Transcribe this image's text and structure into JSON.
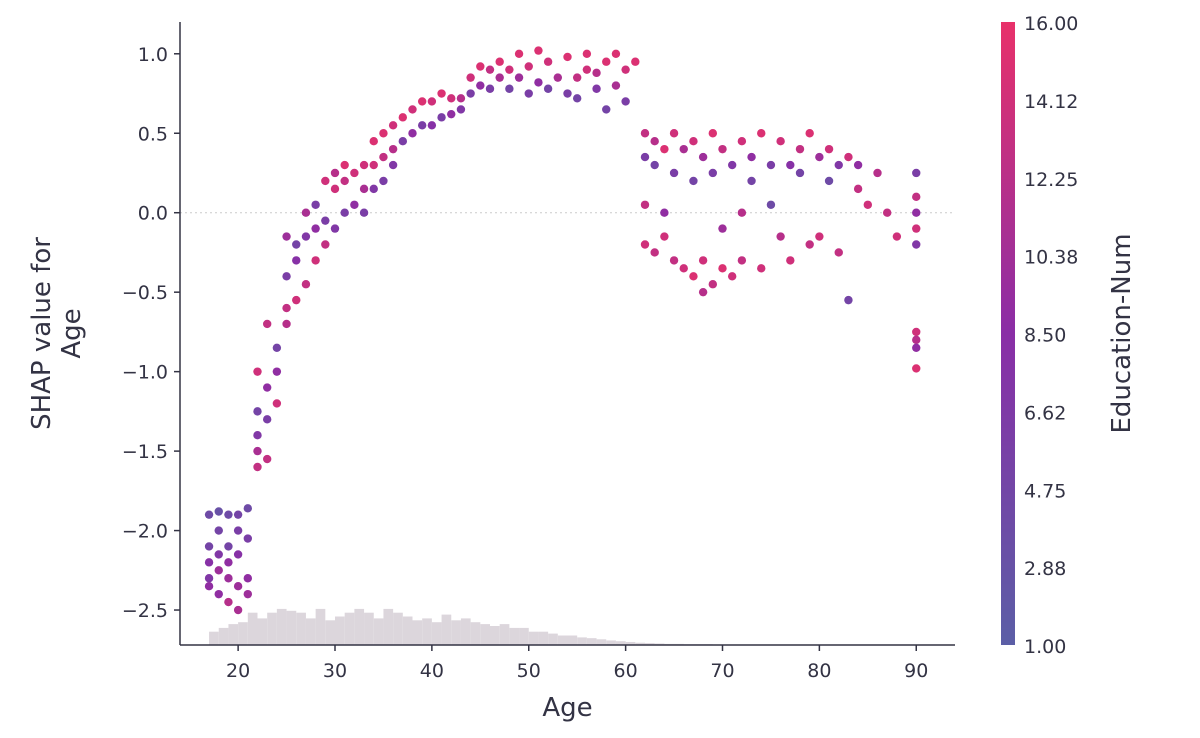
{
  "chart_data": {
    "type": "scatter",
    "title": "",
    "xlabel": "Age",
    "ylabel": "SHAP value for\nAge",
    "xlim": [
      14,
      94
    ],
    "ylim": [
      -2.72,
      1.2
    ],
    "x_ticks": [
      20,
      30,
      40,
      50,
      60,
      70,
      80,
      90
    ],
    "x_tick_labels": [
      "20",
      "30",
      "40",
      "50",
      "60",
      "70",
      "80",
      "90"
    ],
    "y_ticks": [
      -2.5,
      -2.0,
      -1.5,
      -1.0,
      -0.5,
      0.0,
      0.5,
      1.0
    ],
    "y_tick_labels": [
      "−2.5",
      "−2.0",
      "−1.5",
      "−1.0",
      "−0.5",
      "0.0",
      "0.5",
      "1.0"
    ],
    "zero_line": true,
    "grid": false,
    "colorbar": {
      "label": "Education-Num",
      "min": 1.0,
      "max": 16.0,
      "ticks": [
        16.0,
        14.12,
        12.25,
        10.38,
        8.5,
        6.62,
        4.75,
        2.88,
        1.0
      ],
      "tick_labels": [
        "16.00",
        "14.12",
        "12.25",
        "10.38",
        "8.50",
        "6.62",
        "4.75",
        "2.88",
        "1.00"
      ],
      "colors": [
        "#5b5ea6",
        "#8a2ea6",
        "#e8316a"
      ]
    },
    "points": [
      {
        "x": 17,
        "y": -2.3,
        "c": 7
      },
      {
        "x": 17,
        "y": -2.1,
        "c": 5
      },
      {
        "x": 17,
        "y": -1.9,
        "c": 4
      },
      {
        "x": 17,
        "y": -2.2,
        "c": 8
      },
      {
        "x": 17,
        "y": -2.35,
        "c": 9
      },
      {
        "x": 18,
        "y": -2.25,
        "c": 10
      },
      {
        "x": 18,
        "y": -2.0,
        "c": 5
      },
      {
        "x": 18,
        "y": -2.15,
        "c": 7
      },
      {
        "x": 18,
        "y": -1.88,
        "c": 3
      },
      {
        "x": 18,
        "y": -2.4,
        "c": 9
      },
      {
        "x": 19,
        "y": -2.3,
        "c": 10
      },
      {
        "x": 19,
        "y": -2.1,
        "c": 5
      },
      {
        "x": 19,
        "y": -2.45,
        "c": 12
      },
      {
        "x": 19,
        "y": -1.9,
        "c": 4
      },
      {
        "x": 19,
        "y": -2.2,
        "c": 9
      },
      {
        "x": 20,
        "y": -2.35,
        "c": 10
      },
      {
        "x": 20,
        "y": -2.0,
        "c": 6
      },
      {
        "x": 20,
        "y": -2.5,
        "c": 11
      },
      {
        "x": 20,
        "y": -2.15,
        "c": 8
      },
      {
        "x": 20,
        "y": -1.9,
        "c": 5
      },
      {
        "x": 21,
        "y": -2.3,
        "c": 9
      },
      {
        "x": 21,
        "y": -2.05,
        "c": 6
      },
      {
        "x": 21,
        "y": -1.86,
        "c": 4
      },
      {
        "x": 21,
        "y": -2.4,
        "c": 10
      },
      {
        "x": 22,
        "y": -1.6,
        "c": 13
      },
      {
        "x": 22,
        "y": -1.4,
        "c": 7
      },
      {
        "x": 22,
        "y": -1.25,
        "c": 5
      },
      {
        "x": 22,
        "y": -1.5,
        "c": 11
      },
      {
        "x": 22,
        "y": -1.0,
        "c": 14
      },
      {
        "x": 23,
        "y": -1.55,
        "c": 13
      },
      {
        "x": 23,
        "y": -1.3,
        "c": 6
      },
      {
        "x": 23,
        "y": -1.1,
        "c": 9
      },
      {
        "x": 23,
        "y": -0.7,
        "c": 13
      },
      {
        "x": 24,
        "y": -1.2,
        "c": 14
      },
      {
        "x": 24,
        "y": -1.0,
        "c": 9
      },
      {
        "x": 24,
        "y": -0.85,
        "c": 5
      },
      {
        "x": 25,
        "y": -0.6,
        "c": 13
      },
      {
        "x": 25,
        "y": -0.4,
        "c": 6
      },
      {
        "x": 25,
        "y": -0.15,
        "c": 10
      },
      {
        "x": 25,
        "y": -0.7,
        "c": 12
      },
      {
        "x": 26,
        "y": -0.55,
        "c": 14
      },
      {
        "x": 26,
        "y": -0.3,
        "c": 8
      },
      {
        "x": 26,
        "y": -0.2,
        "c": 5
      },
      {
        "x": 27,
        "y": -0.45,
        "c": 13
      },
      {
        "x": 27,
        "y": -0.15,
        "c": 7
      },
      {
        "x": 27,
        "y": 0.0,
        "c": 11
      },
      {
        "x": 28,
        "y": -0.3,
        "c": 14
      },
      {
        "x": 28,
        "y": -0.1,
        "c": 9
      },
      {
        "x": 28,
        "y": 0.05,
        "c": 6
      },
      {
        "x": 29,
        "y": -0.2,
        "c": 13
      },
      {
        "x": 29,
        "y": -0.05,
        "c": 6
      },
      {
        "x": 29,
        "y": 0.2,
        "c": 14
      },
      {
        "x": 30,
        "y": -0.1,
        "c": 7
      },
      {
        "x": 30,
        "y": 0.15,
        "c": 14
      },
      {
        "x": 30,
        "y": 0.25,
        "c": 12
      },
      {
        "x": 31,
        "y": 0.0,
        "c": 6
      },
      {
        "x": 31,
        "y": 0.2,
        "c": 13
      },
      {
        "x": 31,
        "y": 0.3,
        "c": 15
      },
      {
        "x": 32,
        "y": 0.05,
        "c": 9
      },
      {
        "x": 32,
        "y": 0.25,
        "c": 14
      },
      {
        "x": 33,
        "y": 0.0,
        "c": 6
      },
      {
        "x": 33,
        "y": 0.15,
        "c": 11
      },
      {
        "x": 33,
        "y": 0.3,
        "c": 14
      },
      {
        "x": 34,
        "y": 0.3,
        "c": 14
      },
      {
        "x": 34,
        "y": 0.45,
        "c": 15
      },
      {
        "x": 34,
        "y": 0.15,
        "c": 7
      },
      {
        "x": 35,
        "y": 0.35,
        "c": 13
      },
      {
        "x": 35,
        "y": 0.2,
        "c": 6
      },
      {
        "x": 35,
        "y": 0.5,
        "c": 15
      },
      {
        "x": 36,
        "y": 0.4,
        "c": 12
      },
      {
        "x": 36,
        "y": 0.3,
        "c": 7
      },
      {
        "x": 36,
        "y": 0.55,
        "c": 14
      },
      {
        "x": 37,
        "y": 0.6,
        "c": 15
      },
      {
        "x": 37,
        "y": 0.45,
        "c": 6
      },
      {
        "x": 38,
        "y": 0.5,
        "c": 9
      },
      {
        "x": 38,
        "y": 0.65,
        "c": 14
      },
      {
        "x": 39,
        "y": 0.55,
        "c": 6
      },
      {
        "x": 39,
        "y": 0.7,
        "c": 15
      },
      {
        "x": 40,
        "y": 0.55,
        "c": 8
      },
      {
        "x": 40,
        "y": 0.7,
        "c": 14
      },
      {
        "x": 41,
        "y": 0.6,
        "c": 6
      },
      {
        "x": 41,
        "y": 0.75,
        "c": 15
      },
      {
        "x": 42,
        "y": 0.62,
        "c": 9
      },
      {
        "x": 42,
        "y": 0.72,
        "c": 14
      },
      {
        "x": 43,
        "y": 0.65,
        "c": 7
      },
      {
        "x": 43,
        "y": 0.72,
        "c": 12
      },
      {
        "x": 44,
        "y": 0.75,
        "c": 6
      },
      {
        "x": 44,
        "y": 0.85,
        "c": 14
      },
      {
        "x": 45,
        "y": 0.8,
        "c": 9
      },
      {
        "x": 45,
        "y": 0.92,
        "c": 15
      },
      {
        "x": 46,
        "y": 0.78,
        "c": 6
      },
      {
        "x": 46,
        "y": 0.9,
        "c": 13
      },
      {
        "x": 47,
        "y": 0.85,
        "c": 11
      },
      {
        "x": 47,
        "y": 0.95,
        "c": 15
      },
      {
        "x": 48,
        "y": 0.78,
        "c": 5
      },
      {
        "x": 48,
        "y": 0.9,
        "c": 14
      },
      {
        "x": 49,
        "y": 0.85,
        "c": 10
      },
      {
        "x": 49,
        "y": 1.0,
        "c": 15
      },
      {
        "x": 50,
        "y": 0.75,
        "c": 6
      },
      {
        "x": 50,
        "y": 0.92,
        "c": 14
      },
      {
        "x": 51,
        "y": 0.82,
        "c": 9
      },
      {
        "x": 51,
        "y": 1.02,
        "c": 15
      },
      {
        "x": 52,
        "y": 0.78,
        "c": 5
      },
      {
        "x": 52,
        "y": 0.95,
        "c": 14
      },
      {
        "x": 53,
        "y": 0.85,
        "c": 11
      },
      {
        "x": 54,
        "y": 0.75,
        "c": 6
      },
      {
        "x": 54,
        "y": 0.98,
        "c": 15
      },
      {
        "x": 55,
        "y": 0.85,
        "c": 13
      },
      {
        "x": 55,
        "y": 0.72,
        "c": 5
      },
      {
        "x": 56,
        "y": 0.9,
        "c": 14
      },
      {
        "x": 56,
        "y": 1.0,
        "c": 15
      },
      {
        "x": 57,
        "y": 0.78,
        "c": 7
      },
      {
        "x": 57,
        "y": 0.88,
        "c": 12
      },
      {
        "x": 58,
        "y": 0.65,
        "c": 5
      },
      {
        "x": 58,
        "y": 0.95,
        "c": 15
      },
      {
        "x": 59,
        "y": 0.8,
        "c": 11
      },
      {
        "x": 59,
        "y": 1.0,
        "c": 15
      },
      {
        "x": 60,
        "y": 0.7,
        "c": 6
      },
      {
        "x": 60,
        "y": 0.9,
        "c": 14
      },
      {
        "x": 61,
        "y": 0.95,
        "c": 15
      },
      {
        "x": 62,
        "y": 0.5,
        "c": 13
      },
      {
        "x": 62,
        "y": 0.35,
        "c": 6
      },
      {
        "x": 62,
        "y": 0.05,
        "c": 13
      },
      {
        "x": 62,
        "y": -0.2,
        "c": 14
      },
      {
        "x": 63,
        "y": 0.45,
        "c": 12
      },
      {
        "x": 63,
        "y": 0.3,
        "c": 5
      },
      {
        "x": 63,
        "y": -0.25,
        "c": 13
      },
      {
        "x": 64,
        "y": 0.4,
        "c": 15
      },
      {
        "x": 64,
        "y": -0.15,
        "c": 14
      },
      {
        "x": 64,
        "y": 0.0,
        "c": 9
      },
      {
        "x": 65,
        "y": 0.5,
        "c": 14
      },
      {
        "x": 65,
        "y": 0.25,
        "c": 6
      },
      {
        "x": 65,
        "y": -0.3,
        "c": 13
      },
      {
        "x": 66,
        "y": 0.4,
        "c": 11
      },
      {
        "x": 66,
        "y": -0.35,
        "c": 14
      },
      {
        "x": 67,
        "y": 0.45,
        "c": 14
      },
      {
        "x": 67,
        "y": 0.2,
        "c": 5
      },
      {
        "x": 67,
        "y": -0.4,
        "c": 15
      },
      {
        "x": 68,
        "y": 0.35,
        "c": 10
      },
      {
        "x": 68,
        "y": -0.3,
        "c": 14
      },
      {
        "x": 68,
        "y": -0.5,
        "c": 12
      },
      {
        "x": 69,
        "y": 0.5,
        "c": 15
      },
      {
        "x": 69,
        "y": 0.25,
        "c": 6
      },
      {
        "x": 69,
        "y": -0.45,
        "c": 13
      },
      {
        "x": 70,
        "y": 0.4,
        "c": 13
      },
      {
        "x": 70,
        "y": -0.1,
        "c": 10
      },
      {
        "x": 70,
        "y": -0.35,
        "c": 15
      },
      {
        "x": 71,
        "y": 0.3,
        "c": 7
      },
      {
        "x": 71,
        "y": -0.4,
        "c": 14
      },
      {
        "x": 72,
        "y": 0.45,
        "c": 14
      },
      {
        "x": 72,
        "y": 0.0,
        "c": 12
      },
      {
        "x": 72,
        "y": -0.3,
        "c": 13
      },
      {
        "x": 73,
        "y": 0.35,
        "c": 9
      },
      {
        "x": 73,
        "y": 0.2,
        "c": 5
      },
      {
        "x": 74,
        "y": 0.5,
        "c": 15
      },
      {
        "x": 74,
        "y": -0.35,
        "c": 14
      },
      {
        "x": 75,
        "y": 0.3,
        "c": 6
      },
      {
        "x": 75,
        "y": 0.05,
        "c": 4
      },
      {
        "x": 76,
        "y": 0.45,
        "c": 14
      },
      {
        "x": 76,
        "y": -0.15,
        "c": 12
      },
      {
        "x": 77,
        "y": 0.3,
        "c": 8
      },
      {
        "x": 77,
        "y": -0.3,
        "c": 14
      },
      {
        "x": 78,
        "y": 0.4,
        "c": 13
      },
      {
        "x": 78,
        "y": 0.25,
        "c": 5
      },
      {
        "x": 79,
        "y": 0.5,
        "c": 15
      },
      {
        "x": 79,
        "y": -0.2,
        "c": 13
      },
      {
        "x": 80,
        "y": 0.35,
        "c": 10
      },
      {
        "x": 80,
        "y": -0.15,
        "c": 14
      },
      {
        "x": 81,
        "y": 0.4,
        "c": 14
      },
      {
        "x": 81,
        "y": 0.2,
        "c": 4
      },
      {
        "x": 82,
        "y": 0.3,
        "c": 7
      },
      {
        "x": 82,
        "y": -0.25,
        "c": 13
      },
      {
        "x": 83,
        "y": 0.35,
        "c": 14
      },
      {
        "x": 83,
        "y": -0.55,
        "c": 5
      },
      {
        "x": 84,
        "y": 0.15,
        "c": 13
      },
      {
        "x": 84,
        "y": 0.3,
        "c": 9
      },
      {
        "x": 85,
        "y": 0.05,
        "c": 14
      },
      {
        "x": 86,
        "y": 0.25,
        "c": 12
      },
      {
        "x": 87,
        "y": 0.0,
        "c": 13
      },
      {
        "x": 88,
        "y": -0.15,
        "c": 14
      },
      {
        "x": 90,
        "y": 0.25,
        "c": 6
      },
      {
        "x": 90,
        "y": 0.1,
        "c": 13
      },
      {
        "x": 90,
        "y": 0.0,
        "c": 9
      },
      {
        "x": 90,
        "y": -0.1,
        "c": 14
      },
      {
        "x": 90,
        "y": -0.2,
        "c": 7
      },
      {
        "x": 90,
        "y": -0.75,
        "c": 14
      },
      {
        "x": 90,
        "y": -0.8,
        "c": 12
      },
      {
        "x": 90,
        "y": -0.85,
        "c": 9
      },
      {
        "x": 90,
        "y": -0.98,
        "c": 15
      }
    ],
    "histogram": {
      "bins_start": 17,
      "bin_width": 1,
      "relative_heights": [
        0.35,
        0.45,
        0.55,
        0.6,
        0.85,
        0.7,
        0.85,
        0.95,
        0.9,
        0.85,
        0.7,
        0.95,
        0.65,
        0.75,
        0.85,
        0.95,
        0.85,
        0.7,
        0.95,
        0.85,
        0.75,
        0.65,
        0.7,
        0.6,
        0.8,
        0.65,
        0.7,
        0.6,
        0.55,
        0.5,
        0.55,
        0.45,
        0.45,
        0.35,
        0.35,
        0.3,
        0.25,
        0.25,
        0.2,
        0.18,
        0.15,
        0.12,
        0.1,
        0.08,
        0.06,
        0.05,
        0.04,
        0.03,
        0.03,
        0.02,
        0.02,
        0.02,
        0.01,
        0.01,
        0.01,
        0.01,
        0.01,
        0.01,
        0.01,
        0.01,
        0.01,
        0.01,
        0.01,
        0.01
      ],
      "color": "#dcd6dc"
    }
  }
}
